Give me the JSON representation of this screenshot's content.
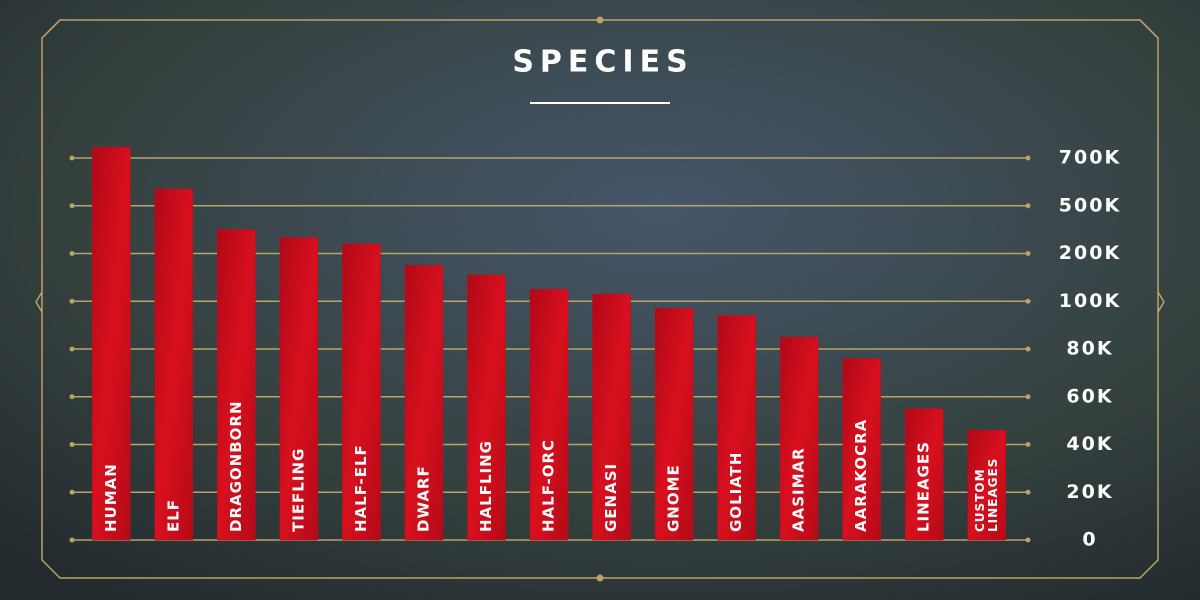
{
  "chart_data": {
    "type": "bar",
    "title": "SPECIES",
    "categories": [
      "HUMAN",
      "ELF",
      "DRAGONBORN",
      "TIEFLING",
      "HALF-ELF",
      "DWARF",
      "HALFLING",
      "HALF-ORC",
      "GENASI",
      "GNOME",
      "GOLIATH",
      "AASIMAR",
      "AARAKOCRA",
      "LINEAGES",
      "CUSTOM LINEAGES"
    ],
    "values": [
      745000,
      570000,
      350000,
      300000,
      260000,
      175000,
      155000,
      125000,
      115000,
      97000,
      94000,
      85000,
      76000,
      55000,
      46000
    ],
    "color": "#c20c1c",
    "ylim": [
      0,
      750000
    ],
    "yticks": [
      0,
      {
        "value": 20000,
        "label": "20K"
      },
      {
        "value": 40000,
        "label": "40K"
      },
      {
        "value": 60000,
        "label": "60K"
      },
      {
        "value": 80000,
        "label": "80K"
      },
      {
        "value": 100000,
        "label": "100K"
      },
      {
        "value": 200000,
        "label": "200K"
      },
      {
        "value": 500000,
        "label": "500K"
      },
      {
        "value": 700000,
        "label": "700K"
      }
    ],
    "grid": true
  }
}
